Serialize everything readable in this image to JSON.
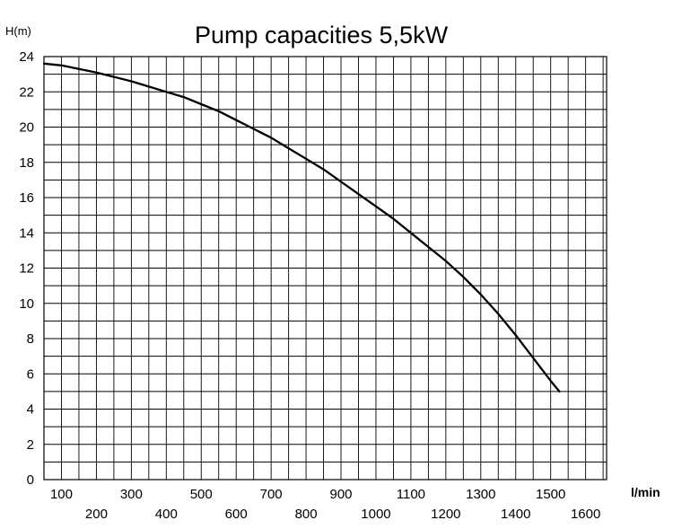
{
  "chart_data": {
    "type": "line",
    "title": "Pump capacities 5,5kW",
    "ylabel": "H(m)",
    "xlabel": "l/min",
    "xlim": [
      50,
      1660
    ],
    "ylim": [
      0,
      24
    ],
    "grid": true,
    "y_ticks": [
      0,
      2,
      4,
      6,
      8,
      10,
      12,
      14,
      16,
      18,
      20,
      22,
      24
    ],
    "x_ticks_upper": [
      100,
      300,
      500,
      700,
      900,
      1100,
      1300,
      1500
    ],
    "x_ticks_lower": [
      200,
      400,
      600,
      800,
      1000,
      1200,
      1400,
      1600
    ],
    "series": [
      {
        "color": "#000000",
        "points": [
          [
            50,
            23.6
          ],
          [
            100,
            23.5
          ],
          [
            150,
            23.3
          ],
          [
            200,
            23.1
          ],
          [
            250,
            22.85
          ],
          [
            300,
            22.6
          ],
          [
            350,
            22.3
          ],
          [
            400,
            22.0
          ],
          [
            450,
            21.7
          ],
          [
            500,
            21.3
          ],
          [
            550,
            20.9
          ],
          [
            600,
            20.4
          ],
          [
            650,
            19.9
          ],
          [
            700,
            19.4
          ],
          [
            750,
            18.8
          ],
          [
            800,
            18.2
          ],
          [
            850,
            17.6
          ],
          [
            900,
            16.9
          ],
          [
            950,
            16.2
          ],
          [
            1000,
            15.5
          ],
          [
            1050,
            14.8
          ],
          [
            1100,
            14.0
          ],
          [
            1150,
            13.2
          ],
          [
            1200,
            12.4
          ],
          [
            1250,
            11.5
          ],
          [
            1300,
            10.5
          ],
          [
            1350,
            9.4
          ],
          [
            1400,
            8.2
          ],
          [
            1450,
            6.9
          ],
          [
            1500,
            5.6
          ],
          [
            1525,
            5.0
          ]
        ]
      }
    ]
  }
}
